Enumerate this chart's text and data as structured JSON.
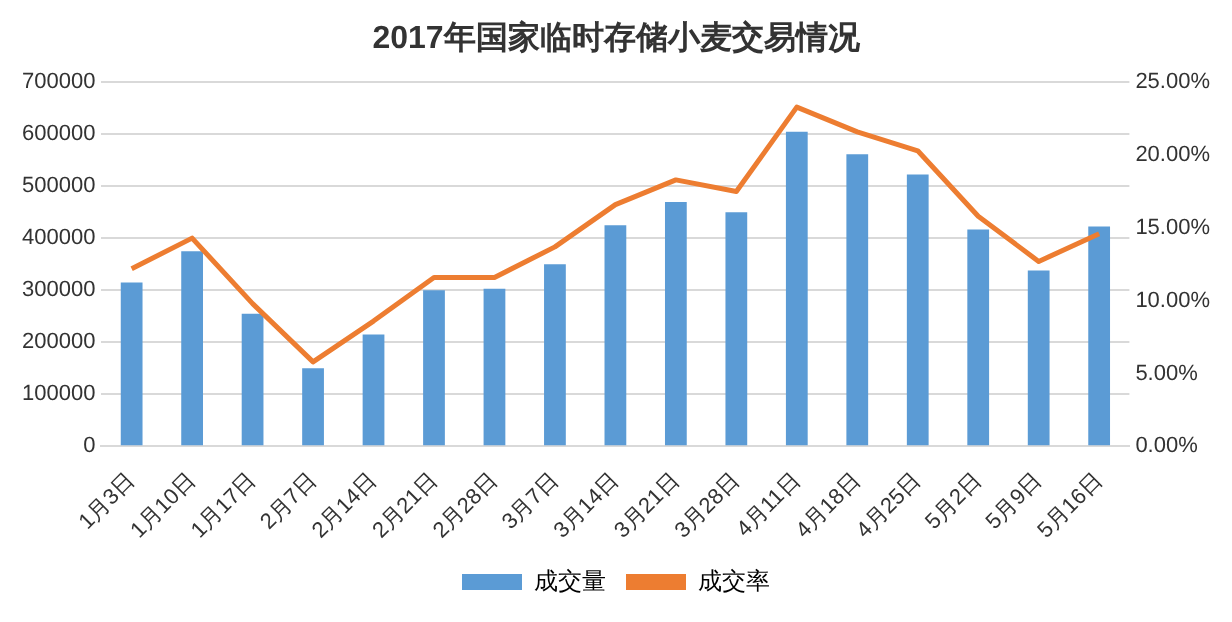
{
  "chart_data": {
    "type": "bar",
    "title": "2017年国家临时存储小麦交易情况",
    "categories": [
      "1月3日",
      "1月10日",
      "1月17日",
      "2月7日",
      "2月14日",
      "2月21日",
      "2月28日",
      "3月7日",
      "3月14日",
      "3月21日",
      "3月28日",
      "4月11日",
      "4月18日",
      "4月25日",
      "5月2日",
      "5月9日",
      "5月16日"
    ],
    "series": [
      {
        "name": "成交量",
        "color": "#5b9bd5",
        "values": [
          315000,
          375000,
          255000,
          150000,
          215000,
          300000,
          303000,
          350000,
          425000,
          470000,
          450000,
          605000,
          562000,
          523000,
          417000,
          338000,
          423000
        ]
      },
      {
        "name": "成交率",
        "type": "line",
        "axis": "y2",
        "color": "#ed7d31",
        "values": [
          12.2,
          14.3,
          9.8,
          5.8,
          8.6,
          11.6,
          11.6,
          13.7,
          16.6,
          18.3,
          17.5,
          23.3,
          21.6,
          20.3,
          15.8,
          12.7,
          14.6
        ]
      }
    ],
    "ylim": [
      0,
      700000
    ],
    "yticks": [
      0,
      100000,
      200000,
      300000,
      400000,
      500000,
      600000,
      700000
    ],
    "y2lim": [
      0,
      25
    ],
    "y2ticks": [
      {
        "value": 0,
        "label": "0.00%"
      },
      {
        "value": 5,
        "label": "5.00%"
      },
      {
        "value": 10,
        "label": "10.00%"
      },
      {
        "value": 15,
        "label": "15.00%"
      },
      {
        "value": 20,
        "label": "20.00%"
      },
      {
        "value": 25,
        "label": "25.00%"
      }
    ],
    "grid": "y",
    "legend": "bottom",
    "marker": "none"
  }
}
